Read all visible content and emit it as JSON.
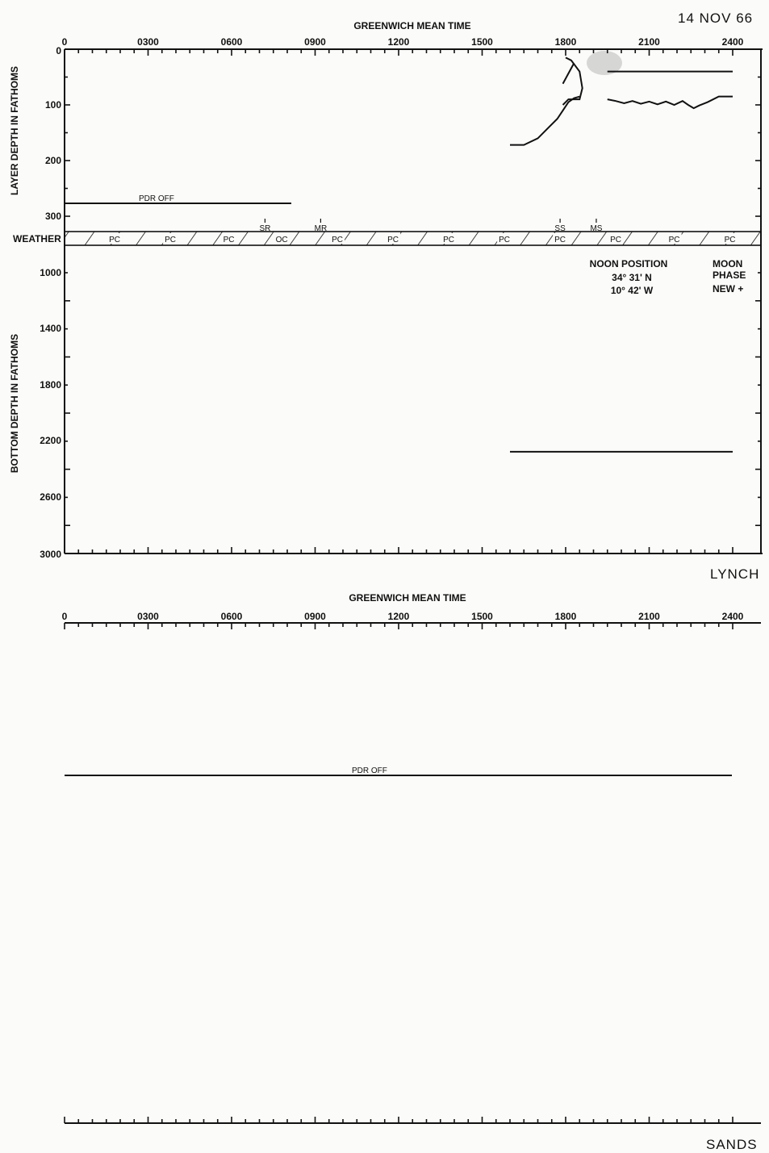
{
  "date": "14 NOV 66",
  "time_axis_title": "GREENWICH MEAN TIME",
  "time_ticks": [
    "0",
    "0300",
    "0600",
    "0900",
    "1200",
    "1500",
    "1800",
    "2100",
    "2400"
  ],
  "colors": {
    "ink": "#111111",
    "paper": "#fbfbf9",
    "smudge": "#cfcfcf"
  },
  "chart_data": [
    {
      "type": "line",
      "name_label": "LYNCH",
      "xlabel": "GREENWICH MEAN TIME",
      "xlim": [
        0,
        24
      ],
      "layer_panel": {
        "ylabel": "LAYER DEPTH IN FATHOMS",
        "ylim": [
          0,
          300
        ],
        "y_reversed": true,
        "y_ticks": [
          "0",
          "100",
          "200",
          "300"
        ],
        "pdr_off": {
          "label": "PDR OFF",
          "x": [
            0,
            8
          ]
        },
        "series": [
          {
            "points": [
              [
                16.0,
                172
              ],
              [
                16.5,
                172
              ],
              [
                17.0,
                160
              ],
              [
                17.4,
                140
              ],
              [
                17.7,
                125
              ],
              [
                17.9,
                110
              ],
              [
                18.1,
                95
              ],
              [
                18.3,
                88
              ],
              [
                18.5,
                85
              ]
            ]
          },
          {
            "points": [
              [
                17.9,
                100
              ],
              [
                18.1,
                90
              ],
              [
                18.5,
                90
              ],
              [
                18.6,
                70
              ],
              [
                18.5,
                40
              ],
              [
                18.2,
                20
              ],
              [
                18.0,
                15
              ]
            ]
          },
          {
            "points": [
              [
                19.5,
                90
              ],
              [
                19.8,
                93
              ],
              [
                20.1,
                97
              ],
              [
                20.4,
                93
              ],
              [
                20.7,
                98
              ],
              [
                21.0,
                94
              ],
              [
                21.3,
                99
              ],
              [
                21.6,
                94
              ],
              [
                21.9,
                100
              ],
              [
                22.2,
                93
              ],
              [
                22.4,
                100
              ],
              [
                22.6,
                106
              ],
              [
                22.8,
                101
              ],
              [
                23.1,
                95
              ],
              [
                23.5,
                85
              ],
              [
                24.0,
                85
              ]
            ]
          },
          {
            "points": [
              [
                19.5,
                40
              ],
              [
                24.0,
                40
              ]
            ]
          }
        ]
      },
      "weather_row": {
        "label": "WEATHER",
        "codes": [
          "PC",
          "PC",
          "PC",
          "OC",
          "PC",
          "PC",
          "PC",
          "PC",
          "PC",
          "PC",
          "PC",
          "PC"
        ],
        "code_times": [
          1.8,
          3.8,
          5.9,
          7.8,
          9.8,
          11.8,
          13.8,
          15.8,
          17.8,
          19.8,
          21.9,
          23.9
        ],
        "events": [
          {
            "label": "SR",
            "time": 7.2
          },
          {
            "label": "MR",
            "time": 9.2
          },
          {
            "label": "SS",
            "time": 17.8
          },
          {
            "label": "MS",
            "time": 19.1
          }
        ]
      },
      "bottom_panel": {
        "ylabel": "BOTTOM DEPTH IN FATHOMS",
        "ylim": [
          600,
          3000
        ],
        "y_reversed": true,
        "y_ticks": [
          "1000",
          "1400",
          "1800",
          "2200",
          "2600",
          "3000"
        ],
        "series": [
          {
            "points": [
              [
                16.0,
                2275
              ],
              [
                24.0,
                2275
              ]
            ]
          }
        ]
      },
      "noon_position": {
        "title": "NOON POSITION",
        "lat": "34° 31' N",
        "lon": "10° 42' W"
      },
      "moon_phase": {
        "title_line1": "MOON",
        "title_line2": "PHASE",
        "value": "NEW +"
      }
    },
    {
      "type": "line",
      "name_label": "SANDS",
      "xlabel": "GREENWICH MEAN TIME",
      "xlim": [
        0,
        24
      ],
      "pdr_off": {
        "label": "PDR OFF",
        "x": [
          0,
          24
        ]
      },
      "series": []
    }
  ]
}
